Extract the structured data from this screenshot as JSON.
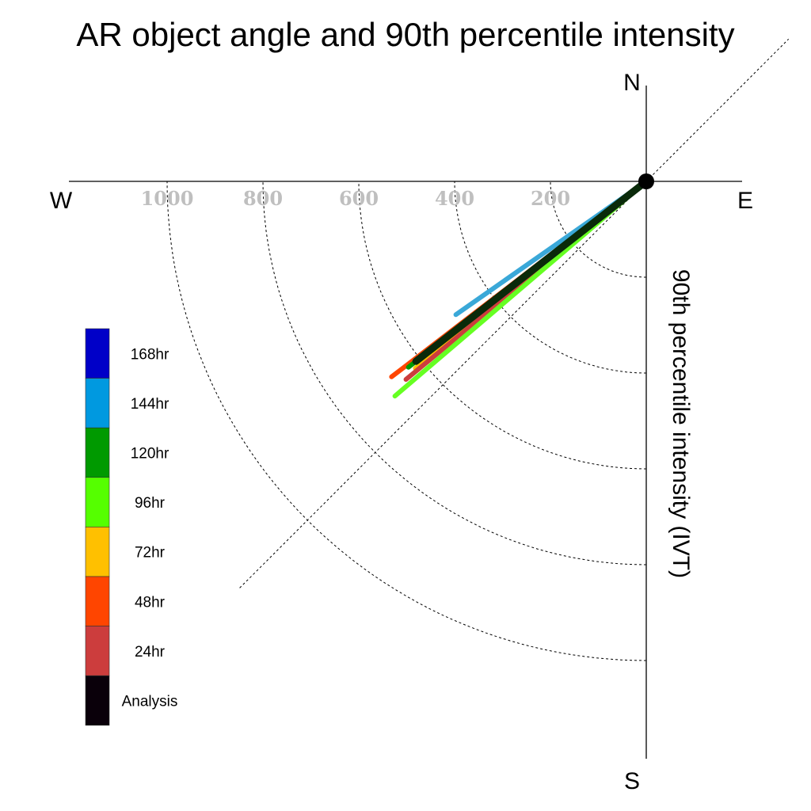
{
  "chart_data": {
    "type": "polar-vector",
    "title": "AR object angle and 90th percentile intensity",
    "radial_label": "90th percentile intensity (IVT)",
    "compass": {
      "north": "N",
      "south": "S",
      "east": "E",
      "west": "W"
    },
    "radial_ticks": [
      200,
      400,
      600,
      800,
      1000
    ],
    "radial_tick_labels": [
      "200",
      "400",
      "600",
      "800",
      "1000"
    ],
    "radial_max": 1200,
    "angle_convention": "degrees clockwise from north",
    "reference_line_angle_deg": 225,
    "legend": [
      {
        "label": "168hr",
        "color": "#0000c8"
      },
      {
        "label": "144hr",
        "color": "#0099e0"
      },
      {
        "label": "120hr",
        "color": "#009a00"
      },
      {
        "label": "96hr",
        "color": "#55ff00"
      },
      {
        "label": "72hr",
        "color": "#ffc000"
      },
      {
        "label": "48hr",
        "color": "#ff4500"
      },
      {
        "label": "24hr",
        "color": "#cc3d3d"
      },
      {
        "label": "Analysis",
        "color": "#0a000a"
      }
    ],
    "series": [
      {
        "name": "144hr",
        "angle_deg": 235.0,
        "intensity": 485,
        "color": "#3aa8d8",
        "width": 6
      },
      {
        "name": "48hr",
        "angle_deg": 232.5,
        "intensity": 670,
        "color": "#ff4500",
        "width": 6
      },
      {
        "name": "72hr",
        "angle_deg": 231.0,
        "intensity": 620,
        "color": "#ffc000",
        "width": 6
      },
      {
        "name": "120hr",
        "angle_deg": 232.0,
        "intensity": 630,
        "color": "#009a00",
        "width": 6
      },
      {
        "name": "24hr",
        "angle_deg": 230.5,
        "intensity": 650,
        "color": "#cc3d3d",
        "width": 6
      },
      {
        "name": "96hr",
        "angle_deg": 229.5,
        "intensity": 690,
        "color": "#66ff22",
        "width": 6
      },
      {
        "name": "Analysis",
        "angle_deg": 232.0,
        "intensity": 610,
        "color": "#0a2a0a",
        "width": 9
      }
    ]
  }
}
